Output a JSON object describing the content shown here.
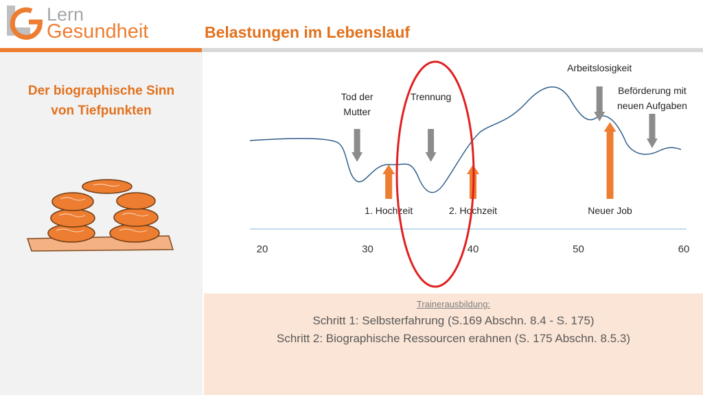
{
  "header": {
    "logo_lern": "Lern",
    "logo_gesundheit": "Gesundheit",
    "title": "Belastungen im Lebenslauf"
  },
  "sidebar": {
    "title_line1": "Der biographische Sinn",
    "title_line2": "von Tiefpunkten"
  },
  "chart_data": {
    "type": "line",
    "x_ticks": [
      "20",
      "30",
      "40",
      "50",
      "60"
    ],
    "xlim": [
      20,
      60
    ],
    "negative_events": [
      {
        "label_lines": [
          "Tod der",
          "Mutter"
        ],
        "age": 29
      },
      {
        "label_lines": [
          "Trennung"
        ],
        "age": 36
      },
      {
        "label_lines": [
          "Arbeitslosigkeit"
        ],
        "age": 52
      },
      {
        "label_lines": [
          "Beförderung mit",
          "neuen Aufgaben"
        ],
        "age": 57
      }
    ],
    "positive_events": [
      {
        "label": "1. Hochzeit",
        "age": 32
      },
      {
        "label": "2. Hochzeit",
        "age": 40
      },
      {
        "label": "Neuer Job",
        "age": 53
      }
    ],
    "highlight": "Trennung"
  },
  "footer": {
    "subtitle": "Trainerausbildung:",
    "step1": "Schritt 1: Selbsterfahrung (S.169 Abschn. 8.4 - S. 175)",
    "step2": "Schritt 2: Biographische Ressourcen erahnen (S. 175 Abschn. 8.5.3)"
  },
  "colors": {
    "accent": "#ed7d31",
    "curve": "#2e5d8a",
    "highlight_circle": "#e02020",
    "negative_arrow": "#8c8c8c",
    "positive_arrow": "#ed7d31",
    "footer_bg": "#fbe5d6"
  }
}
